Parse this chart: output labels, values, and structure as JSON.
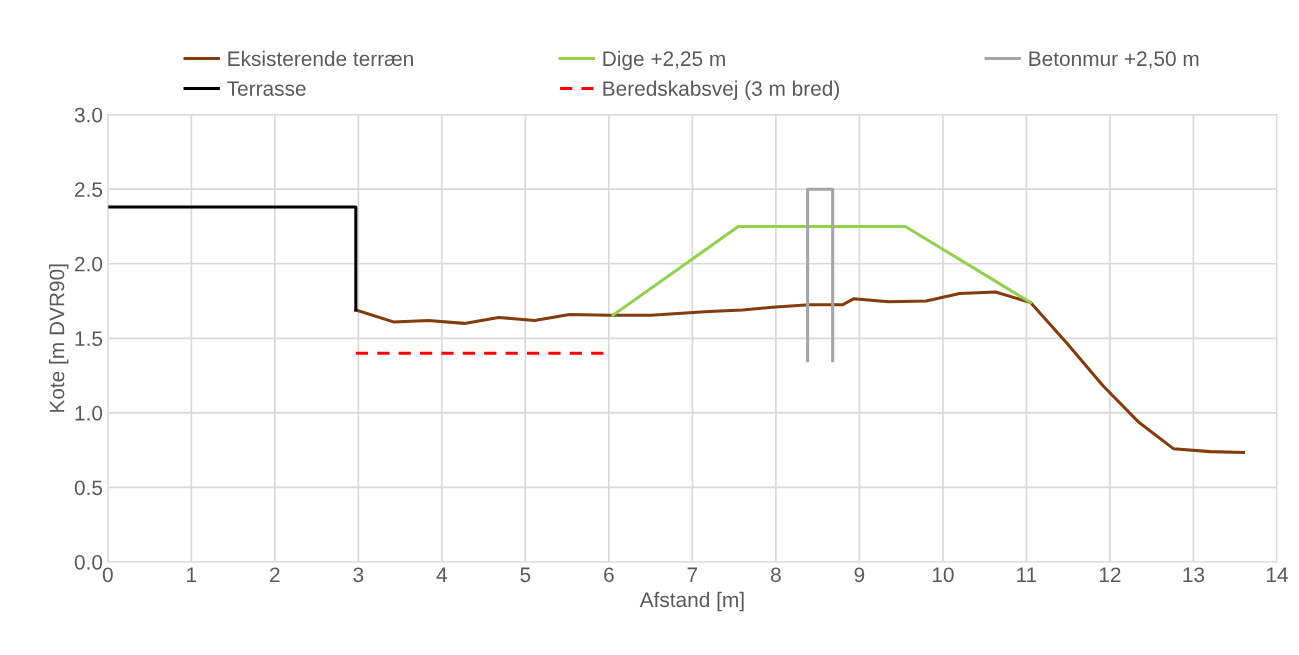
{
  "chart_data": {
    "type": "line",
    "xlabel": "Afstand [m]",
    "ylabel": "Kote [m DVR90]",
    "xlim": [
      0,
      14
    ],
    "ylim": [
      0,
      3
    ],
    "xticks": [
      0,
      1,
      2,
      3,
      4,
      5,
      6,
      7,
      8,
      9,
      10,
      11,
      12,
      13,
      14
    ],
    "yticks": [
      {
        "value": 0,
        "label": "0.0"
      },
      {
        "value": 0.5,
        "label": "0.5"
      },
      {
        "value": 1,
        "label": "1.0"
      },
      {
        "value": 1.5,
        "label": "1.5"
      },
      {
        "value": 2,
        "label": "2.0"
      },
      {
        "value": 2.5,
        "label": "2.5"
      },
      {
        "value": 3,
        "label": "3.0"
      }
    ],
    "grid": true,
    "legend": "top",
    "marker": "none",
    "series": [
      {
        "name": "Eksisterende terræn",
        "color": "#843c0c",
        "line_style": "solid",
        "x": [
          2.97,
          3.42,
          3.84,
          4.27,
          4.68,
          5.11,
          5.53,
          6.0,
          6.5,
          7.2,
          7.6,
          8.0,
          8.4,
          8.8,
          8.93,
          9.35,
          9.8,
          10.2,
          10.63,
          11.05,
          11.48,
          11.92,
          12.35,
          12.76,
          13.2,
          13.6
        ],
        "values": [
          1.69,
          1.61,
          1.62,
          1.6,
          1.64,
          1.62,
          1.66,
          1.655,
          1.655,
          1.68,
          1.69,
          1.71,
          1.725,
          1.725,
          1.765,
          1.745,
          1.75,
          1.8,
          1.81,
          1.74,
          1.47,
          1.18,
          0.935,
          0.76,
          0.74,
          0.735
        ]
      },
      {
        "name": "Terrasse",
        "color": "#000000",
        "line_style": "solid",
        "x": [
          0,
          2.97,
          2.97
        ],
        "values": [
          2.38,
          2.38,
          1.69
        ]
      },
      {
        "name": "Dige +2,25 m",
        "color": "#92d050",
        "line_style": "solid",
        "x": [
          6.05,
          7.55,
          9.55,
          11.05
        ],
        "values": [
          1.655,
          2.25,
          2.25,
          1.74
        ]
      },
      {
        "name": "Beredskabsvej (3 m bred)",
        "color": "#ff0000",
        "line_style": "dashed",
        "x": [
          2.97,
          5.95
        ],
        "values": [
          1.4,
          1.4
        ]
      },
      {
        "name": "Betonmur +2,50 m",
        "color": "#a5a5a5",
        "line_style": "solid",
        "x": [
          8.38,
          8.38,
          8.68,
          8.68
        ],
        "values": [
          1.35,
          2.5,
          2.5,
          1.35
        ]
      }
    ]
  }
}
